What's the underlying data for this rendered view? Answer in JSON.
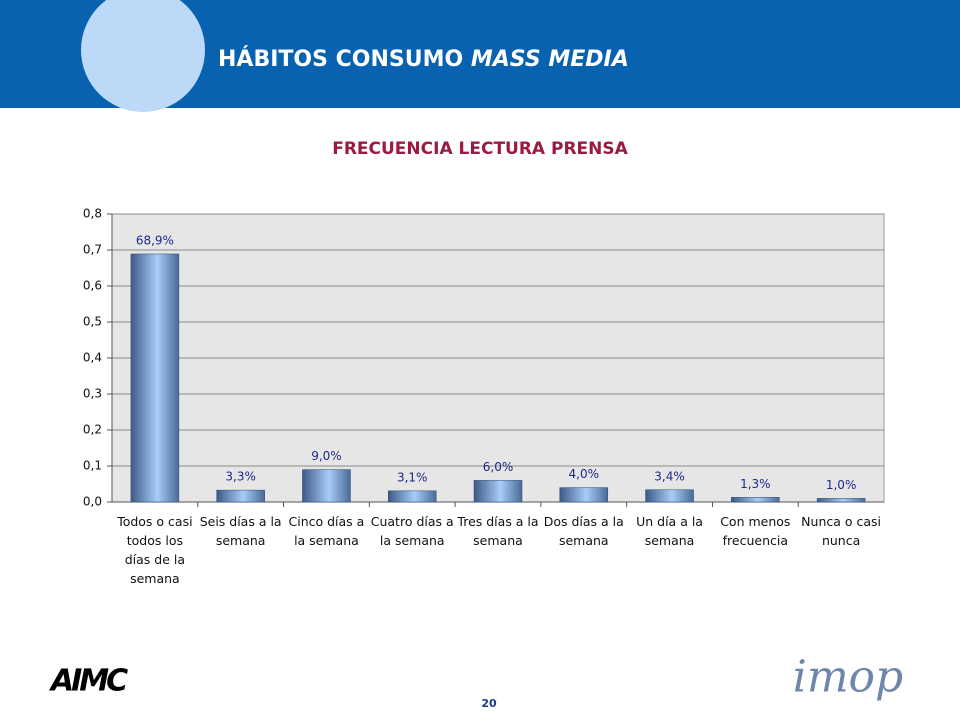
{
  "header": {
    "title": "HÁBITOS CONSUMO",
    "title_italic": "MASS MEDIA"
  },
  "chart_data": {
    "type": "bar",
    "title": "FRECUENCIA LECTURA PRENSA",
    "categories": [
      "Todos o casi todos los días de la semana",
      "Seis días a la semana",
      "Cinco días a la semana",
      "Cuatro días a la semana",
      "Tres días a la semana",
      "Dos días a la semana",
      "Un día a la semana",
      "Con menos frecuencia",
      "Nunca o casi nunca"
    ],
    "values": [
      0.689,
      0.033,
      0.09,
      0.031,
      0.06,
      0.04,
      0.034,
      0.013,
      0.01
    ],
    "value_labels": [
      "68,9%",
      "3,3%",
      "9,0%",
      "3,1%",
      "6,0%",
      "4,0%",
      "3,4%",
      "1,3%",
      "1,0%"
    ],
    "color": "#7aa6dc",
    "ylim": [
      0,
      0.8
    ],
    "yticks": [
      {
        "value": 0,
        "label": "0,0"
      },
      {
        "value": 0.1,
        "label": "0,1"
      },
      {
        "value": 0.2,
        "label": "0,2"
      },
      {
        "value": 0.3,
        "label": "0,3"
      },
      {
        "value": 0.4,
        "label": "0,4"
      },
      {
        "value": 0.5,
        "label": "0,5"
      },
      {
        "value": 0.6,
        "label": "0,6"
      },
      {
        "value": 0.7,
        "label": "0,7"
      },
      {
        "value": 0.8,
        "label": "0,8"
      }
    ],
    "grid": true
  },
  "footer": {
    "page": "20",
    "logo_left": "AIMC",
    "logo_right": "imop"
  }
}
